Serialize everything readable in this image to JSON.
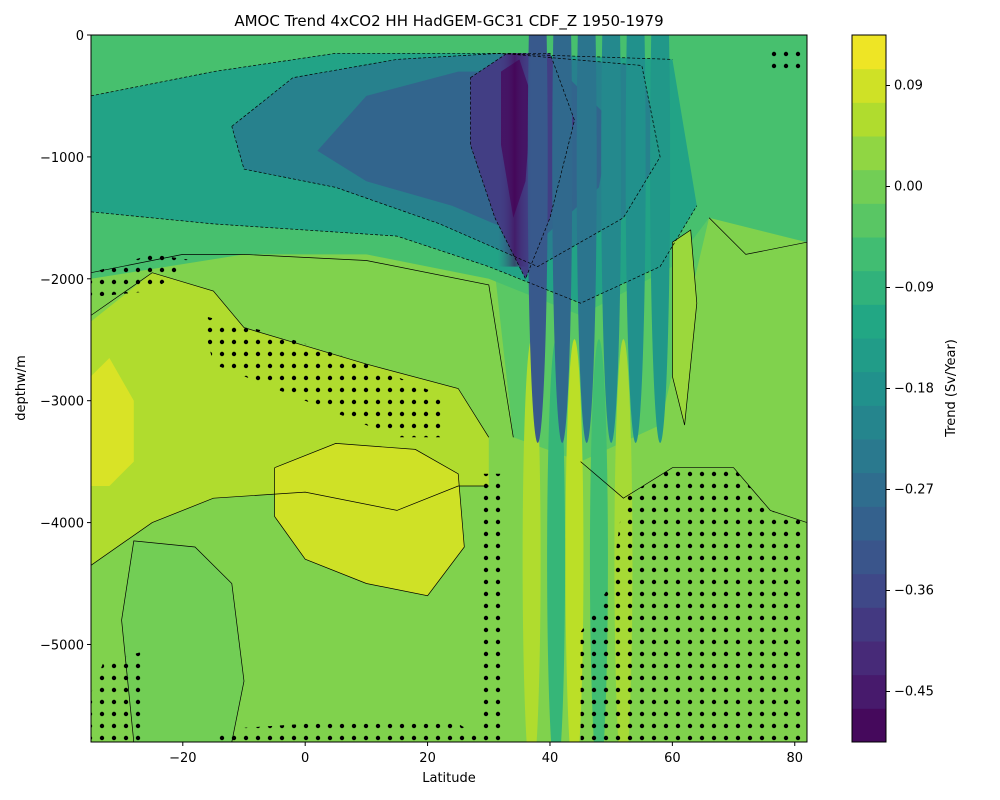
{
  "chart_data": {
    "type": "heatmap",
    "title": "AMOC Trend 4xCO2 HH HadGEM-GC31 CDF_Z 1950-1979",
    "xlabel": "Latitude",
    "ylabel": "depthw/m",
    "xlim": [
      -35,
      82
    ],
    "ylim": [
      -5800,
      0
    ],
    "x_ticks": [
      -20,
      0,
      20,
      40,
      60,
      80
    ],
    "y_ticks": [
      0,
      -1000,
      -2000,
      -3000,
      -4000,
      -5000
    ],
    "colorbar": {
      "label": "Trend (Sv/Year)",
      "colormap": "viridis",
      "range": [
        -0.495,
        0.135
      ],
      "levels": 21,
      "ticks": [
        0.09,
        0.0,
        -0.09,
        -0.18,
        -0.27,
        -0.36,
        -0.45
      ]
    },
    "colors": {
      "viridis": [
        "#440154",
        "#482475",
        "#414487",
        "#355f8d",
        "#2a788e",
        "#21918c",
        "#22a884",
        "#44bf70",
        "#7ad151",
        "#bddf26",
        "#fde725"
      ]
    },
    "grid": false,
    "legend": "none",
    "overlays": [
      "stippling (significance dots)",
      "solid contours (positive)",
      "dashed contours (negative)"
    ],
    "features": [
      {
        "region": "North Atlantic sinking core",
        "lat": [
          30,
          40
        ],
        "depth": [
          -300,
          -3400
        ],
        "trend": -0.47
      },
      {
        "region": "Upper cell broad weakening",
        "lat": [
          -5,
          60
        ],
        "depth": [
          -200,
          -1800
        ],
        "trend": -0.24
      },
      {
        "region": "Southern Hemisphere deep positive",
        "lat": [
          -35,
          -15
        ],
        "depth": [
          -2300,
          -3900
        ],
        "trend": 0.08
      },
      {
        "region": "Subtropical deep positive",
        "lat": [
          5,
          25
        ],
        "depth": [
          -3400,
          -4600
        ],
        "trend": 0.08
      },
      {
        "region": "Abyssal cell",
        "lat": [
          -28,
          82
        ],
        "depth": [
          -4300,
          -5800
        ],
        "trend": 0.01
      }
    ]
  }
}
